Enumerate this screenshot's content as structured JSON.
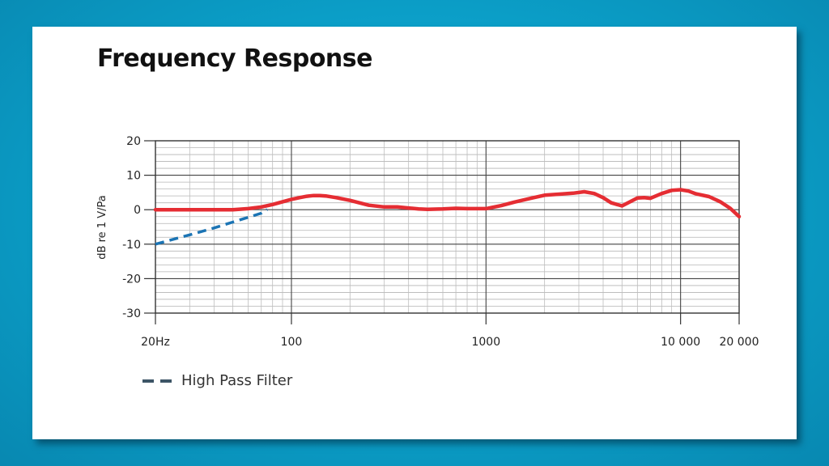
{
  "title": "Frequency Response",
  "chart_data": {
    "type": "line",
    "title": "Frequency Response",
    "xlabel": "",
    "ylabel": "dB re 1 V/Pa",
    "xscale": "log",
    "xlim": [
      20,
      20000
    ],
    "ylim": [
      -30,
      20
    ],
    "grid": true,
    "yticks": [
      {
        "value": 20,
        "label": "20"
      },
      {
        "value": 10,
        "label": "10"
      },
      {
        "value": 0,
        "label": "0"
      },
      {
        "value": -10,
        "label": "-10"
      },
      {
        "value": -20,
        "label": "-20"
      },
      {
        "value": -30,
        "label": "-30"
      }
    ],
    "xticks": [
      {
        "value": 20,
        "label": "20Hz"
      },
      {
        "value": 100,
        "label": "100"
      },
      {
        "value": 1000,
        "label": "1000"
      },
      {
        "value": 10000,
        "label": "10 000"
      },
      {
        "value": 20000,
        "label": "20 000"
      }
    ],
    "legend_position": "bottom-left",
    "series": [
      {
        "color": "#e52d33",
        "style": "solid",
        "x": [
          20,
          30,
          40,
          50,
          60,
          70,
          80,
          90,
          100,
          110,
          120,
          130,
          140,
          150,
          170,
          200,
          250,
          300,
          350,
          400,
          450,
          500,
          600,
          700,
          800,
          900,
          1000,
          1200,
          1400,
          1700,
          2000,
          2500,
          2800,
          3200,
          3600,
          4000,
          4400,
          5000,
          5500,
          6000,
          6500,
          7000,
          8000,
          9000,
          10000,
          11000,
          12000,
          14000,
          16000,
          18000,
          20000
        ],
        "y": [
          0,
          0,
          0,
          0,
          0.3,
          0.8,
          1.5,
          2.3,
          3.0,
          3.5,
          3.9,
          4.1,
          4.1,
          4.0,
          3.5,
          2.7,
          1.3,
          0.8,
          0.8,
          0.5,
          0.2,
          0.1,
          0.2,
          0.4,
          0.3,
          0.3,
          0.3,
          1.2,
          2.2,
          3.3,
          4.2,
          4.6,
          4.8,
          5.2,
          4.7,
          3.5,
          2.0,
          1.1,
          2.3,
          3.4,
          3.5,
          3.3,
          4.7,
          5.6,
          5.8,
          5.4,
          4.6,
          3.8,
          2.3,
          0.4,
          -2.0
        ]
      },
      {
        "name": "High Pass Filter",
        "color": "#1b74b4",
        "style": "dashed",
        "x": [
          20,
          30,
          40,
          50,
          60,
          70,
          75
        ],
        "y": [
          -10,
          -7.3,
          -5.3,
          -3.6,
          -2.2,
          -1.0,
          0.1
        ]
      }
    ]
  }
}
